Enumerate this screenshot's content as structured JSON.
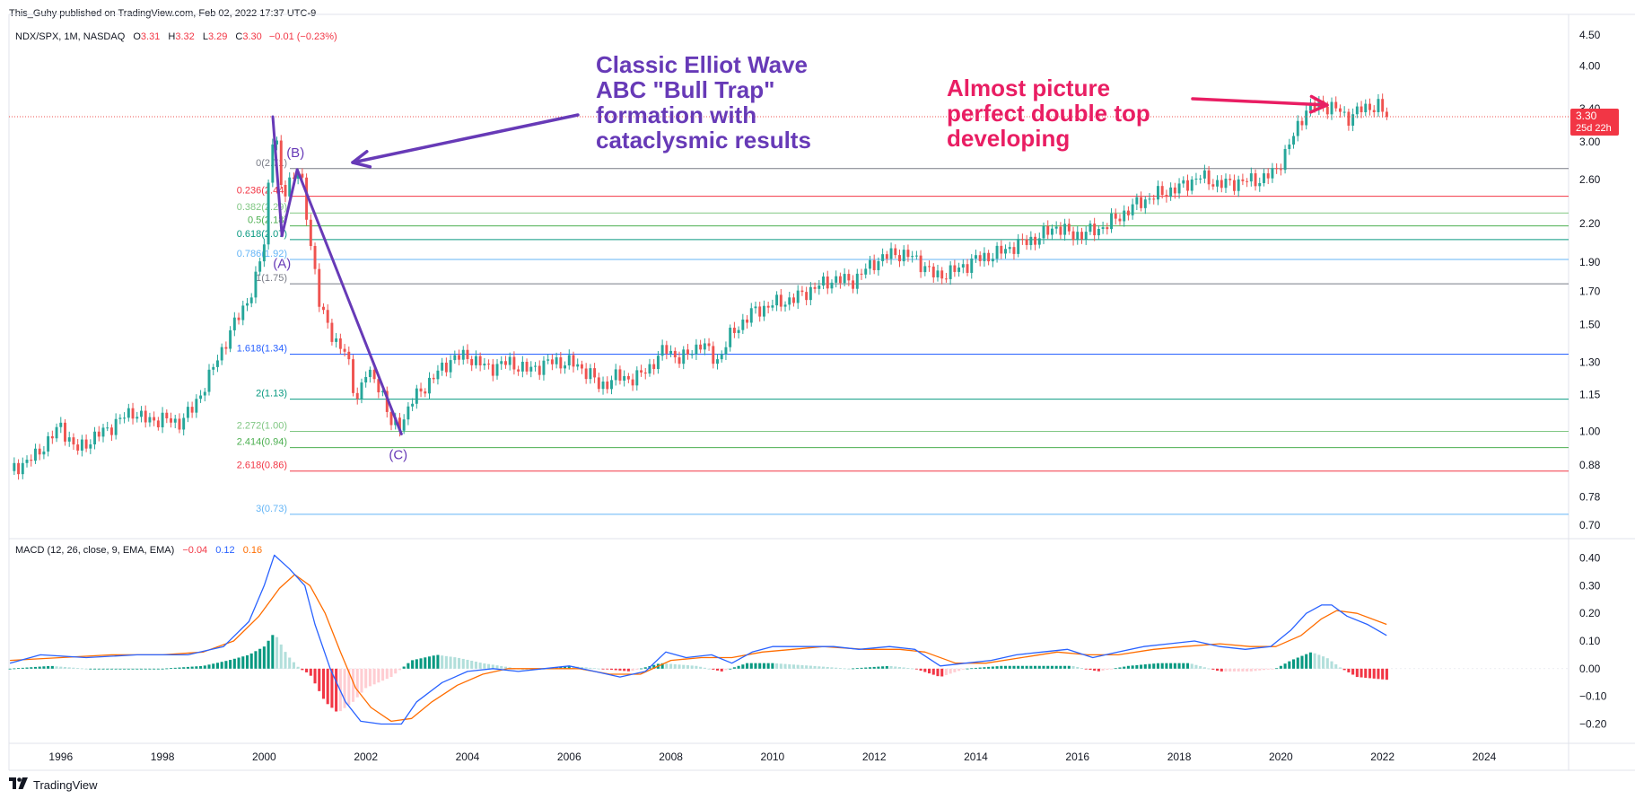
{
  "header": {
    "publisher": "This_Guhy published on TradingView.com, Feb 02, 2022 17:37 UTC-9"
  },
  "legend": {
    "symbol": "NDX/SPX, 1M, NASDAQ",
    "o_label": "O",
    "o_value": "3.31",
    "h_label": "H",
    "h_value": "3.32",
    "l_label": "L",
    "l_value": "3.29",
    "c_label": "C",
    "c_value": "3.30",
    "change": "−0.01 (−0.23%)"
  },
  "macd_legend": {
    "label": "MACD (12, 26, close, 9, EMA, EMA)",
    "hist": "−0.04",
    "macd": "0.12",
    "signal": "0.16"
  },
  "annotations": {
    "elliot": "Classic Elliot Wave\nABC \"Bull Trap\"\nformation with\ncataclysmic results",
    "double_top": "Almost picture\nperfect double top\ndeveloping"
  },
  "wave_labels": {
    "a": "(A)",
    "b": "(B)",
    "c": "(C)"
  },
  "price_badge": {
    "price": "3.30",
    "countdown": "25d 22h"
  },
  "footer": {
    "brand": "TradingView",
    "logo_icon": "tradingview-logo-icon"
  },
  "colors": {
    "up": "#26a69a",
    "down": "#ef5350",
    "macd": "#2962ff",
    "signal": "#ff6d00",
    "elliot": "#673ab7",
    "double_top": "#e91e63"
  },
  "chart_data": [
    {
      "type": "candlestick",
      "scale": "log",
      "ylim": [
        0.67,
        4.8
      ],
      "xlim": [
        1994.98,
        2025.66
      ],
      "x_ticks": [
        "1996",
        "1998",
        "2000",
        "2002",
        "2004",
        "2006",
        "2008",
        "2010",
        "2012",
        "2014",
        "2016",
        "2018",
        "2020",
        "2022",
        "2024"
      ],
      "y_ticks": [
        "0.70",
        "0.78",
        "0.88",
        "1.00",
        "1.15",
        "1.30",
        "1.50",
        "1.70",
        "1.90",
        "2.20",
        "2.60",
        "3.00",
        "3.40",
        "4.00",
        "4.50"
      ],
      "last_price": 3.3,
      "close_path": [
        [
          1995.0,
          0.86
        ],
        [
          1995.5,
          0.91
        ],
        [
          1996.0,
          1.02
        ],
        [
          1996.3,
          0.93
        ],
        [
          1996.6,
          0.97
        ],
        [
          1997.0,
          1.02
        ],
        [
          1997.4,
          1.08
        ],
        [
          1997.7,
          1.04
        ],
        [
          1998.0,
          1.05
        ],
        [
          1998.3,
          1.03
        ],
        [
          1998.6,
          1.09
        ],
        [
          1998.9,
          1.22
        ],
        [
          1999.2,
          1.38
        ],
        [
          1999.5,
          1.55
        ],
        [
          1999.8,
          1.72
        ],
        [
          2000.0,
          2.05
        ],
        [
          2000.2,
          3.25
        ],
        [
          2000.35,
          2.4
        ],
        [
          2000.5,
          2.6
        ],
        [
          2000.7,
          2.7
        ],
        [
          2000.85,
          2.2
        ],
        [
          2001.1,
          1.6
        ],
        [
          2001.3,
          1.45
        ],
        [
          2001.6,
          1.35
        ],
        [
          2001.8,
          1.12
        ],
        [
          2002.0,
          1.25
        ],
        [
          2002.3,
          1.18
        ],
        [
          2002.5,
          1.02
        ],
        [
          2002.7,
          1.03
        ],
        [
          2002.9,
          1.12
        ],
        [
          2003.3,
          1.22
        ],
        [
          2003.7,
          1.32
        ],
        [
          2004.0,
          1.33
        ],
        [
          2004.4,
          1.27
        ],
        [
          2004.8,
          1.3
        ],
        [
          2005.2,
          1.26
        ],
        [
          2005.6,
          1.3
        ],
        [
          2006.0,
          1.3
        ],
        [
          2006.4,
          1.25
        ],
        [
          2006.6,
          1.18
        ],
        [
          2006.9,
          1.23
        ],
        [
          2007.3,
          1.22
        ],
        [
          2007.6,
          1.28
        ],
        [
          2007.9,
          1.37
        ],
        [
          2008.2,
          1.31
        ],
        [
          2008.6,
          1.4
        ],
        [
          2008.9,
          1.3
        ],
        [
          2009.2,
          1.45
        ],
        [
          2009.6,
          1.57
        ],
        [
          2010.0,
          1.62
        ],
        [
          2010.4,
          1.65
        ],
        [
          2010.8,
          1.72
        ],
        [
          2011.2,
          1.78
        ],
        [
          2011.6,
          1.77
        ],
        [
          2012.0,
          1.9
        ],
        [
          2012.4,
          1.97
        ],
        [
          2012.8,
          1.93
        ],
        [
          2013.2,
          1.8
        ],
        [
          2013.6,
          1.84
        ],
        [
          2014.0,
          1.92
        ],
        [
          2014.4,
          1.96
        ],
        [
          2014.8,
          2.03
        ],
        [
          2015.2,
          2.08
        ],
        [
          2015.6,
          2.18
        ],
        [
          2015.9,
          2.1
        ],
        [
          2016.4,
          2.15
        ],
        [
          2016.8,
          2.25
        ],
        [
          2017.2,
          2.38
        ],
        [
          2017.6,
          2.46
        ],
        [
          2018.0,
          2.52
        ],
        [
          2018.4,
          2.63
        ],
        [
          2018.8,
          2.55
        ],
        [
          2019.2,
          2.58
        ],
        [
          2019.6,
          2.6
        ],
        [
          2019.9,
          2.68
        ],
        [
          2020.2,
          3.0
        ],
        [
          2020.5,
          3.4
        ],
        [
          2020.8,
          3.45
        ],
        [
          2021.1,
          3.4
        ],
        [
          2021.3,
          3.28
        ],
        [
          2021.6,
          3.4
        ],
        [
          2021.9,
          3.45
        ],
        [
          2022.08,
          3.3
        ]
      ]
    },
    {
      "type": "fibonacci",
      "levels": [
        {
          "label": "0(2.71)",
          "ratio": "0",
          "value": 2.71,
          "color": "#787b86"
        },
        {
          "label": "0.236(2.44)",
          "ratio": "0.236",
          "value": 2.44,
          "color": "#f23645"
        },
        {
          "label": "0.382(2.29)",
          "ratio": "0.382",
          "value": 2.29,
          "color": "#81c784"
        },
        {
          "label": "0.5(2.18)",
          "ratio": "0.5",
          "value": 2.18,
          "color": "#4caf50"
        },
        {
          "label": "0.618(2.07)",
          "ratio": "0.618",
          "value": 2.07,
          "color": "#089981"
        },
        {
          "label": "0.786(1.92)",
          "ratio": "0.786",
          "value": 1.92,
          "color": "#64b5f6"
        },
        {
          "label": "1(1.75)",
          "ratio": "1",
          "value": 1.75,
          "color": "#787b86"
        },
        {
          "label": "1.618(1.34)",
          "ratio": "1.618",
          "value": 1.34,
          "color": "#2962ff"
        },
        {
          "label": "2(1.13)",
          "ratio": "2",
          "value": 1.13,
          "color": "#089981"
        },
        {
          "label": "2.272(1.00)",
          "ratio": "2.272",
          "value": 1.0,
          "color": "#81c784"
        },
        {
          "label": "2.414(0.94)",
          "ratio": "2.414",
          "value": 0.94,
          "color": "#4caf50"
        },
        {
          "label": "2.618(0.86)",
          "ratio": "2.618",
          "value": 0.86,
          "color": "#f23645"
        },
        {
          "label": "3(0.73)",
          "ratio": "3",
          "value": 0.73,
          "color": "#64b5f6"
        }
      ]
    },
    {
      "type": "elliott_abc",
      "points": [
        {
          "label": "start",
          "x": 2000.17,
          "y": 3.3
        },
        {
          "label": "(A)",
          "x": 2000.35,
          "y": 2.1
        },
        {
          "label": "(B)",
          "x": 2000.65,
          "y": 2.7
        },
        {
          "label": "(C)",
          "x": 2002.7,
          "y": 0.99
        }
      ]
    },
    {
      "type": "macd",
      "title": "MACD (12, 26, close, 9, EMA, EMA)",
      "ylim": [
        -0.26,
        0.46
      ],
      "y_ticks": [
        "0.40",
        "0.30",
        "0.20",
        "0.10",
        "0.00",
        "−0.10",
        "−0.20"
      ],
      "macd_path": [
        [
          1995.0,
          0.02
        ],
        [
          1995.6,
          0.05
        ],
        [
          1996.5,
          0.04
        ],
        [
          1997.5,
          0.05
        ],
        [
          1998.5,
          0.05
        ],
        [
          1999.2,
          0.08
        ],
        [
          1999.7,
          0.17
        ],
        [
          2000.0,
          0.3
        ],
        [
          2000.2,
          0.41
        ],
        [
          2000.5,
          0.36
        ],
        [
          2000.8,
          0.3
        ],
        [
          2001.0,
          0.16
        ],
        [
          2001.3,
          0.0
        ],
        [
          2001.6,
          -0.12
        ],
        [
          2001.9,
          -0.19
        ],
        [
          2002.3,
          -0.2
        ],
        [
          2002.7,
          -0.2
        ],
        [
          2003.0,
          -0.12
        ],
        [
          2003.5,
          -0.05
        ],
        [
          2004.0,
          -0.01
        ],
        [
          2004.5,
          0.0
        ],
        [
          2005.0,
          -0.01
        ],
        [
          2005.5,
          0.0
        ],
        [
          2006.0,
          0.01
        ],
        [
          2006.5,
          -0.01
        ],
        [
          2007.0,
          -0.03
        ],
        [
          2007.5,
          -0.01
        ],
        [
          2007.9,
          0.06
        ],
        [
          2008.3,
          0.04
        ],
        [
          2008.8,
          0.05
        ],
        [
          2009.2,
          0.02
        ],
        [
          2009.6,
          0.06
        ],
        [
          2010.0,
          0.08
        ],
        [
          2010.6,
          0.08
        ],
        [
          2011.2,
          0.08
        ],
        [
          2011.7,
          0.07
        ],
        [
          2012.3,
          0.08
        ],
        [
          2012.8,
          0.07
        ],
        [
          2013.3,
          0.01
        ],
        [
          2013.8,
          0.02
        ],
        [
          2014.3,
          0.03
        ],
        [
          2014.8,
          0.05
        ],
        [
          2015.3,
          0.06
        ],
        [
          2015.8,
          0.07
        ],
        [
          2016.3,
          0.04
        ],
        [
          2016.8,
          0.06
        ],
        [
          2017.3,
          0.08
        ],
        [
          2017.8,
          0.09
        ],
        [
          2018.3,
          0.1
        ],
        [
          2018.8,
          0.08
        ],
        [
          2019.3,
          0.07
        ],
        [
          2019.8,
          0.08
        ],
        [
          2020.2,
          0.14
        ],
        [
          2020.5,
          0.2
        ],
        [
          2020.8,
          0.23
        ],
        [
          2021.0,
          0.23
        ],
        [
          2021.3,
          0.19
        ],
        [
          2021.7,
          0.16
        ],
        [
          2022.08,
          0.12
        ]
      ],
      "signal_path": [
        [
          1995.0,
          0.03
        ],
        [
          1996.0,
          0.04
        ],
        [
          1997.0,
          0.05
        ],
        [
          1998.0,
          0.05
        ],
        [
          1998.8,
          0.06
        ],
        [
          1999.4,
          0.1
        ],
        [
          1999.9,
          0.19
        ],
        [
          2000.3,
          0.29
        ],
        [
          2000.6,
          0.34
        ],
        [
          2000.9,
          0.3
        ],
        [
          2001.2,
          0.2
        ],
        [
          2001.5,
          0.06
        ],
        [
          2001.8,
          -0.07
        ],
        [
          2002.1,
          -0.14
        ],
        [
          2002.5,
          -0.19
        ],
        [
          2002.9,
          -0.18
        ],
        [
          2003.3,
          -0.12
        ],
        [
          2003.8,
          -0.06
        ],
        [
          2004.3,
          -0.02
        ],
        [
          2004.8,
          0.0
        ],
        [
          2005.5,
          0.0
        ],
        [
          2006.2,
          0.0
        ],
        [
          2006.8,
          -0.02
        ],
        [
          2007.4,
          -0.02
        ],
        [
          2008.0,
          0.03
        ],
        [
          2008.6,
          0.04
        ],
        [
          2009.2,
          0.04
        ],
        [
          2009.8,
          0.06
        ],
        [
          2010.4,
          0.07
        ],
        [
          2011.0,
          0.08
        ],
        [
          2011.8,
          0.07
        ],
        [
          2012.5,
          0.07
        ],
        [
          2013.0,
          0.06
        ],
        [
          2013.6,
          0.02
        ],
        [
          2014.2,
          0.02
        ],
        [
          2014.9,
          0.04
        ],
        [
          2015.6,
          0.06
        ],
        [
          2016.2,
          0.05
        ],
        [
          2016.8,
          0.05
        ],
        [
          2017.5,
          0.07
        ],
        [
          2018.1,
          0.08
        ],
        [
          2018.8,
          0.09
        ],
        [
          2019.4,
          0.08
        ],
        [
          2019.9,
          0.08
        ],
        [
          2020.4,
          0.12
        ],
        [
          2020.8,
          0.18
        ],
        [
          2021.1,
          0.21
        ],
        [
          2021.5,
          0.2
        ],
        [
          2022.08,
          0.16
        ]
      ],
      "hist_path": [
        [
          1995.0,
          0.0
        ],
        [
          1995.8,
          0.01
        ],
        [
          1996.5,
          0.0
        ],
        [
          1997.2,
          0.0
        ],
        [
          1998.0,
          0.0
        ],
        [
          1998.8,
          0.01
        ],
        [
          1999.3,
          0.03
        ],
        [
          1999.7,
          0.05
        ],
        [
          2000.0,
          0.08
        ],
        [
          2000.2,
          0.13
        ],
        [
          2000.45,
          0.05
        ],
        [
          2000.7,
          0.0
        ],
        [
          2000.9,
          -0.02
        ],
        [
          2001.2,
          -0.12
        ],
        [
          2001.45,
          -0.16
        ],
        [
          2001.75,
          -0.12
        ],
        [
          2002.0,
          -0.07
        ],
        [
          2002.5,
          -0.03
        ],
        [
          2002.9,
          0.03
        ],
        [
          2003.4,
          0.05
        ],
        [
          2003.8,
          0.04
        ],
        [
          2004.3,
          0.02
        ],
        [
          2005.0,
          0.0
        ],
        [
          2005.5,
          0.0
        ],
        [
          2006.0,
          0.01
        ],
        [
          2006.6,
          0.0
        ],
        [
          2007.2,
          -0.01
        ],
        [
          2007.8,
          0.02
        ],
        [
          2008.5,
          0.01
        ],
        [
          2009.0,
          -0.01
        ],
        [
          2009.5,
          0.02
        ],
        [
          2010.0,
          0.02
        ],
        [
          2010.8,
          0.01
        ],
        [
          2011.5,
          0.0
        ],
        [
          2012.3,
          0.01
        ],
        [
          2012.8,
          0.0
        ],
        [
          2013.3,
          -0.03
        ],
        [
          2013.8,
          0.0
        ],
        [
          2014.5,
          0.01
        ],
        [
          2015.2,
          0.01
        ],
        [
          2015.9,
          0.01
        ],
        [
          2016.4,
          -0.01
        ],
        [
          2017.0,
          0.01
        ],
        [
          2017.6,
          0.02
        ],
        [
          2018.2,
          0.02
        ],
        [
          2018.8,
          -0.01
        ],
        [
          2019.4,
          -0.01
        ],
        [
          2019.9,
          0.0
        ],
        [
          2020.2,
          0.03
        ],
        [
          2020.6,
          0.06
        ],
        [
          2020.9,
          0.04
        ],
        [
          2021.2,
          0.0
        ],
        [
          2021.5,
          -0.03
        ],
        [
          2022.08,
          -0.04
        ]
      ]
    }
  ]
}
